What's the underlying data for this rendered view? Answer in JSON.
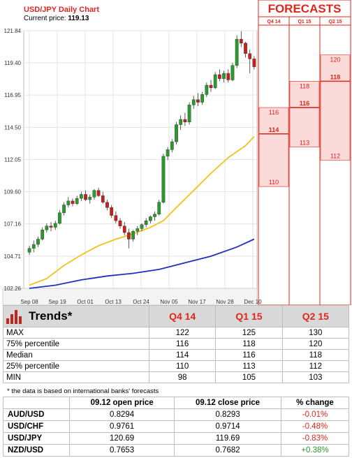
{
  "chart_data": {
    "type": "candlestick",
    "title": "USD/JPY Daily Chart",
    "current_price_label": "Current price:",
    "current_price": "119.13",
    "y_ticks": [
      "121.84",
      "119.40",
      "116.95",
      "114.50",
      "112.05",
      "109.60",
      "107.16",
      "104.71",
      "102.26"
    ],
    "x_ticks": [
      "Sep 08",
      "Sep 19",
      "Oct 01",
      "Oct 13",
      "Oct 24",
      "Nov 05",
      "Nov 17",
      "Nov 28",
      "Dec 10"
    ],
    "ylim": [
      102.26,
      121.84
    ],
    "candles": [
      [
        105.0,
        105.5,
        104.8,
        105.3
      ],
      [
        105.3,
        105.9,
        105.0,
        105.6
      ],
      [
        105.6,
        106.2,
        105.4,
        106.0
      ],
      [
        106.0,
        106.9,
        105.9,
        106.7
      ],
      [
        106.7,
        107.2,
        106.5,
        107.0
      ],
      [
        107.0,
        107.3,
        106.6,
        106.9
      ],
      [
        106.9,
        107.4,
        106.7,
        107.2
      ],
      [
        107.2,
        108.2,
        107.1,
        108.0
      ],
      [
        108.0,
        108.8,
        107.8,
        108.6
      ],
      [
        108.6,
        109.2,
        108.4,
        108.9
      ],
      [
        108.9,
        109.1,
        108.5,
        108.7
      ],
      [
        108.7,
        109.3,
        108.6,
        109.1
      ],
      [
        109.1,
        109.6,
        108.9,
        109.4
      ],
      [
        109.4,
        109.7,
        108.9,
        109.0
      ],
      [
        109.0,
        109.4,
        108.7,
        109.2
      ],
      [
        109.2,
        109.8,
        109.0,
        109.7
      ],
      [
        109.7,
        109.9,
        109.2,
        109.3
      ],
      [
        109.3,
        109.6,
        108.7,
        108.8
      ],
      [
        108.8,
        109.0,
        108.2,
        108.4
      ],
      [
        108.4,
        108.6,
        107.6,
        107.8
      ],
      [
        107.8,
        108.1,
        107.2,
        107.4
      ],
      [
        107.4,
        107.6,
        106.8,
        107.0
      ],
      [
        107.0,
        107.3,
        106.3,
        106.5
      ],
      [
        106.5,
        106.8,
        105.3,
        106.0
      ],
      [
        106.0,
        106.7,
        105.8,
        106.6
      ],
      [
        106.6,
        107.0,
        106.3,
        106.8
      ],
      [
        106.8,
        107.2,
        106.6,
        107.1
      ],
      [
        107.1,
        107.6,
        106.9,
        107.4
      ],
      [
        107.4,
        107.8,
        107.2,
        107.7
      ],
      [
        107.7,
        108.1,
        107.4,
        107.9
      ],
      [
        107.9,
        109.0,
        107.8,
        108.8
      ],
      [
        108.8,
        112.5,
        108.7,
        112.3
      ],
      [
        112.3,
        113.0,
        112.0,
        112.8
      ],
      [
        112.8,
        113.6,
        112.6,
        113.4
      ],
      [
        113.4,
        114.9,
        113.2,
        114.7
      ],
      [
        114.7,
        115.4,
        114.3,
        115.1
      ],
      [
        115.1,
        115.6,
        114.6,
        114.9
      ],
      [
        114.9,
        116.4,
        114.7,
        116.2
      ],
      [
        116.2,
        116.9,
        115.9,
        116.6
      ],
      [
        116.6,
        117.1,
        116.1,
        116.4
      ],
      [
        116.4,
        117.2,
        116.2,
        117.0
      ],
      [
        117.0,
        117.9,
        116.8,
        117.7
      ],
      [
        117.7,
        118.1,
        117.2,
        117.5
      ],
      [
        117.5,
        118.7,
        117.4,
        118.5
      ],
      [
        118.5,
        118.9,
        118.0,
        118.2
      ],
      [
        118.2,
        118.8,
        117.9,
        118.6
      ],
      [
        118.6,
        118.9,
        117.9,
        118.1
      ],
      [
        118.1,
        119.4,
        118.0,
        119.2
      ],
      [
        119.2,
        121.5,
        119.0,
        121.2
      ],
      [
        121.2,
        121.8,
        120.6,
        120.9
      ],
      [
        120.9,
        121.0,
        119.8,
        120.1
      ],
      [
        120.1,
        120.4,
        118.6,
        119.7
      ],
      [
        119.7,
        119.9,
        118.9,
        119.1
      ]
    ],
    "ma_yellow": [
      [
        0,
        102.5
      ],
      [
        4,
        103.0
      ],
      [
        8,
        104.0
      ],
      [
        12,
        104.8
      ],
      [
        16,
        105.5
      ],
      [
        20,
        106.0
      ],
      [
        24,
        106.4
      ],
      [
        28,
        106.9
      ],
      [
        31,
        107.4
      ],
      [
        34,
        108.4
      ],
      [
        38,
        109.7
      ],
      [
        42,
        111.0
      ],
      [
        46,
        112.2
      ],
      [
        50,
        113.1
      ],
      [
        52,
        113.8
      ]
    ],
    "ma_blue": [
      [
        0,
        102.26
      ],
      [
        6,
        102.5
      ],
      [
        12,
        102.9
      ],
      [
        18,
        103.2
      ],
      [
        24,
        103.4
      ],
      [
        30,
        103.7
      ],
      [
        36,
        104.2
      ],
      [
        42,
        104.7
      ],
      [
        48,
        105.4
      ],
      [
        52,
        106.0
      ]
    ]
  },
  "forecasts": {
    "title": "FORECASTS",
    "columns": [
      {
        "label": "Q4 14",
        "max": 122,
        "p75": 116,
        "median": 114,
        "p25": 110,
        "min": 98
      },
      {
        "label": "Q1 15",
        "max": 125,
        "p75": 118,
        "median": 116,
        "p25": 113,
        "min": 105
      },
      {
        "label": "Q2 15",
        "max": 130,
        "p75": 120,
        "median": 118,
        "p25": 112,
        "min": 103
      }
    ]
  },
  "trends": {
    "title": "Trends*",
    "headers": [
      "Q4 14",
      "Q1 15",
      "Q2 15"
    ],
    "rows": [
      {
        "label": "MAX",
        "values": [
          "122",
          "125",
          "130"
        ]
      },
      {
        "label": "75% percentile",
        "values": [
          "116",
          "118",
          "120"
        ]
      },
      {
        "label": "Median",
        "values": [
          "114",
          "116",
          "118"
        ]
      },
      {
        "label": "25% percentile",
        "values": [
          "110",
          "113",
          "112"
        ]
      },
      {
        "label": "MIN",
        "values": [
          "98",
          "105",
          "103"
        ]
      }
    ],
    "note": "* the data is based on international banks' forecasts"
  },
  "fx_table": {
    "headers": [
      "",
      "09.12 open price",
      "09.12 close price",
      "% change"
    ],
    "rows": [
      {
        "pair": "AUD/USD",
        "open": "0.8294",
        "close": "0.8293",
        "change": "-0.01%",
        "dir": "neg"
      },
      {
        "pair": "USD/CHF",
        "open": "0.9761",
        "close": "0.9714",
        "change": "-0.48%",
        "dir": "neg"
      },
      {
        "pair": "USD/JPY",
        "open": "120.69",
        "close": "119.69",
        "change": "-0.83%",
        "dir": "neg"
      },
      {
        "pair": "NZD/USD",
        "open": "0.7653",
        "close": "0.7682",
        "change": "+0.38%",
        "dir": "pos"
      }
    ]
  },
  "colors": {
    "red": "#e0261b",
    "yellow": "#f2c21b",
    "blue": "#1f2fbf",
    "forecast_fill": "#fbdada",
    "candle_green": "#2a9a2a",
    "candle_red": "#c81e1e"
  }
}
